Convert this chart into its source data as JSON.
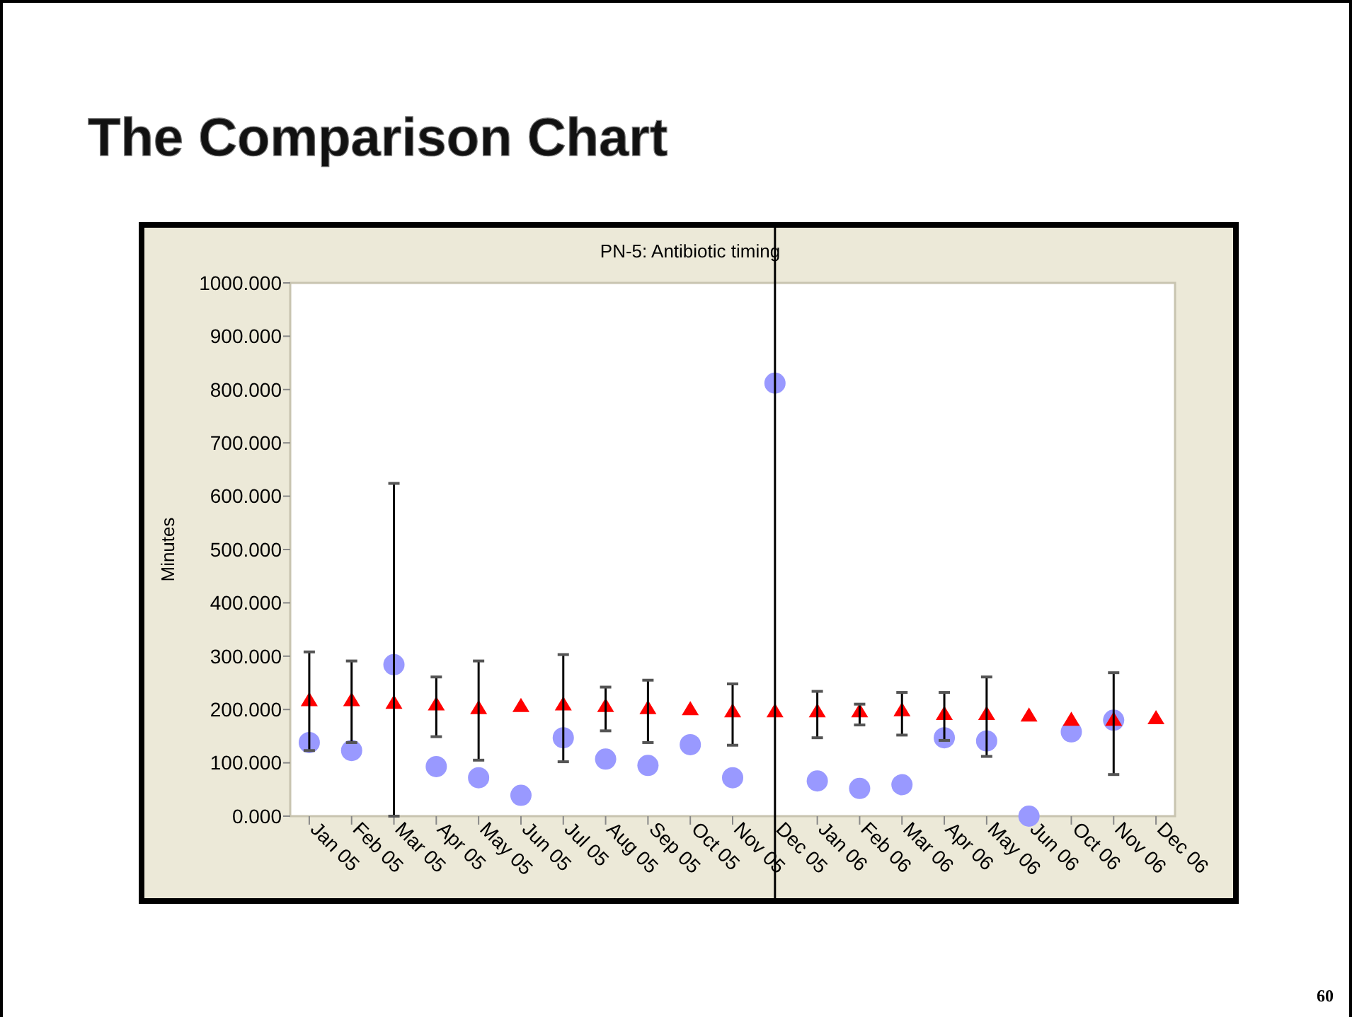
{
  "chart_data": {
    "type": "scatter",
    "title": "The Comparison Chart",
    "subtitle": "PN-5: Antibiotic timing",
    "ylabel": "Minutes",
    "categories": [
      "Jan 05",
      "Feb 05",
      "Mar 05",
      "Apr 05",
      "May 05",
      "Jun 05",
      "Jul 05",
      "Aug 05",
      "Sep 05",
      "Oct 05",
      "Nov 05",
      "Dec 05",
      "Jan 06",
      "Feb 06",
      "Mar 06",
      "Apr 06",
      "May 06",
      "Jun 06",
      "Oct 06",
      "Nov 06",
      "Dec 06"
    ],
    "series": [
      {
        "color": "#9999ff",
        "marker": "circle",
        "values": [
          138,
          123,
          284,
          93,
          72,
          39,
          147,
          107,
          95,
          134,
          72,
          812,
          66,
          52,
          59,
          147,
          141,
          0,
          158,
          180,
          null
        ]
      },
      {
        "color": "#ff0000",
        "marker": "triangle",
        "values": [
          217,
          217,
          212,
          209,
          202,
          206,
          209,
          206,
          202,
          200,
          196,
          196,
          196,
          196,
          198,
          191,
          191,
          188,
          180,
          180,
          183
        ],
        "errors": [
          [
            123,
            308
          ],
          [
            138,
            291
          ],
          [
            0,
            624
          ],
          [
            149,
            261
          ],
          [
            105,
            291
          ],
          null,
          [
            102,
            303
          ],
          [
            160,
            242
          ],
          [
            138,
            255
          ],
          null,
          [
            133,
            248
          ],
          null,
          [
            147,
            234
          ],
          [
            171,
            210
          ],
          [
            152,
            232
          ],
          [
            142,
            232
          ],
          [
            112,
            261
          ],
          null,
          null,
          [
            78,
            269
          ],
          null
        ]
      }
    ],
    "ylim": [
      0,
      1000
    ],
    "yticks": [
      {
        "value": 0,
        "label": "0.000"
      },
      {
        "value": 100,
        "label": "100.000"
      },
      {
        "value": 200,
        "label": "200.000"
      },
      {
        "value": 300,
        "label": "300.000"
      },
      {
        "value": 400,
        "label": "400.000"
      },
      {
        "value": 500,
        "label": "500.000"
      },
      {
        "value": 600,
        "label": "600.000"
      },
      {
        "value": 700,
        "label": "700.000"
      },
      {
        "value": 800,
        "label": "800.000"
      },
      {
        "value": 900,
        "label": "900.000"
      },
      {
        "value": 1000,
        "label": "1000.000"
      }
    ],
    "ref_lines": [
      {
        "axis": "x",
        "value": "Dec 05",
        "color": "#000000"
      }
    ],
    "annotations": [
      "60"
    ],
    "grid": false
  }
}
